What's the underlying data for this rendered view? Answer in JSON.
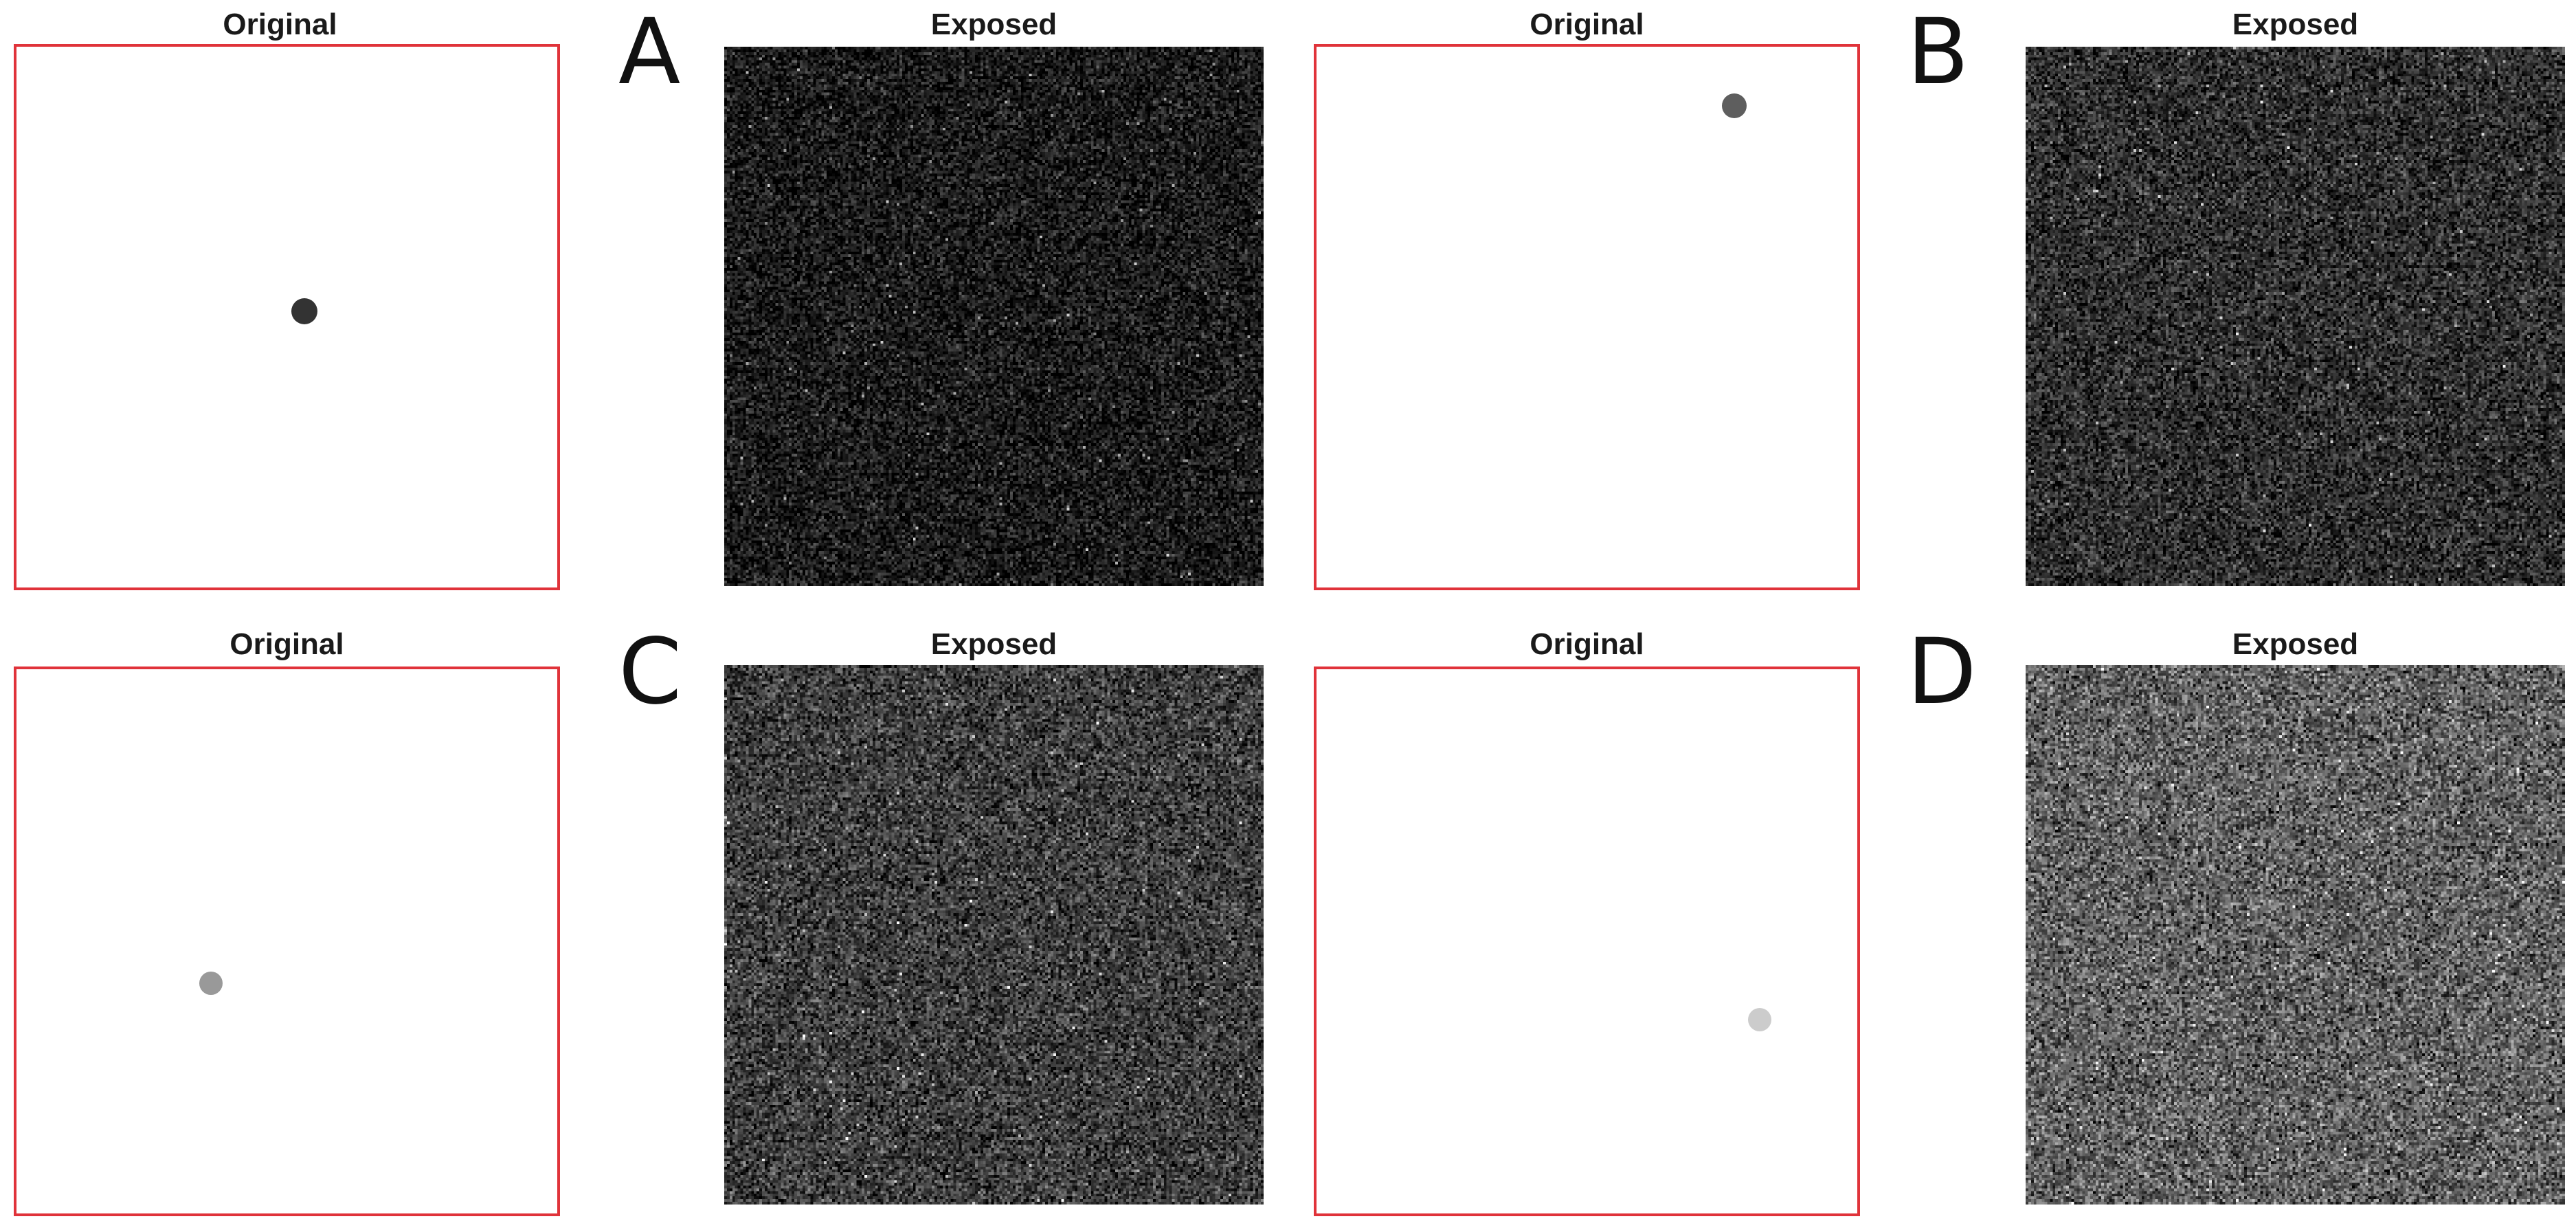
{
  "panels": [
    {
      "letter": "A",
      "original_title": "Original",
      "exposed_title": "Exposed",
      "dot_gray": "#333333",
      "exposed_mean_level": 0.1
    },
    {
      "letter": "B",
      "original_title": "Original",
      "exposed_title": "Exposed",
      "dot_gray": "#5e5e5e",
      "exposed_mean_level": 0.18
    },
    {
      "letter": "C",
      "original_title": "Original",
      "exposed_title": "Exposed",
      "dot_gray": "#999999",
      "exposed_mean_level": 0.24
    },
    {
      "letter": "D",
      "original_title": "Original",
      "exposed_title": "Exposed",
      "dot_gray": "#cccccc",
      "exposed_mean_level": 0.38
    }
  ],
  "colors": {
    "frame_red": "#e0333a",
    "background": "#ffffff"
  }
}
